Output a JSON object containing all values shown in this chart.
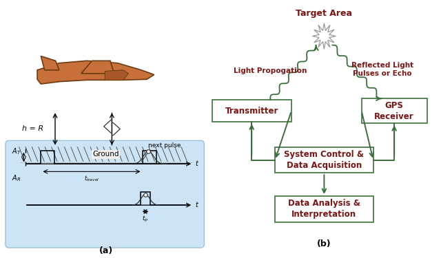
{
  "bg_color": "#ffffff",
  "left_bg_color": "#cce4f5",
  "box_color": "#ffffff",
  "box_edge_color": "#4a7a4a",
  "arrow_color": "#3a6e3a",
  "text_color_dark": "#7a1515",
  "text_color_black": "#000000",
  "plane_fill": "#c8703a",
  "plane_edge": "#6b3a10",
  "label_a": "(a)",
  "label_b": "(b)",
  "title_target": "Target Area",
  "label_light_prop": "Light Propogation",
  "label_reflected": "Reflected Light\nPulses or Echo",
  "label_transmitter": "Transmitter",
  "label_gps": "GPS\nReceiver",
  "label_system": "System Control &\nData Acquisition",
  "label_data": "Data Analysis &\nInterpretation",
  "label_ground": "Ground",
  "label_h": "h = R",
  "label_next_pulse": "next pulse",
  "label_AT": "$A_T$",
  "label_AR": "$A_R$",
  "label_t_travel": "$t_{travel}$",
  "label_tp": "$t_p$",
  "label_t1": "t",
  "label_t2": "t"
}
